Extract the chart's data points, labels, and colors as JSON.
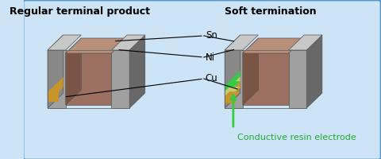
{
  "bg_color": "#cce4f5",
  "border_color": "#5599cc",
  "title_left": "Regular terminal product",
  "title_right": "Soft termination",
  "label_sn": "Sn",
  "label_ni": "Ni",
  "label_cu": "Cu",
  "label_conductive": "Conductive resin electrode",
  "color_body_front": "#9b7060",
  "color_body_top": "#b8907a",
  "color_body_side": "#7a5545",
  "color_term_front": "#a0a0a0",
  "color_term_top": "#c8c8c8",
  "color_term_side": "#888888",
  "color_cu": "#c8952a",
  "color_ni_resin": "#c8c870",
  "color_green": "#33cc44",
  "color_green_label": "#22aa33",
  "figsize": [
    4.8,
    2.0
  ],
  "dpi": 100
}
